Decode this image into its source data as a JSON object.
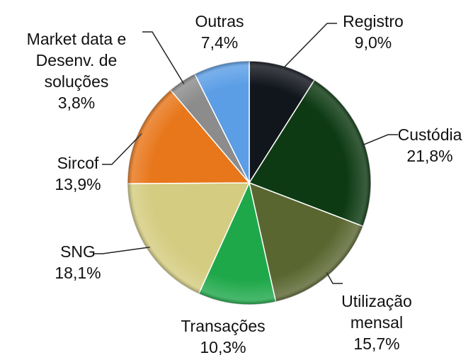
{
  "chart_data": {
    "type": "pie",
    "categories": [
      "Registro",
      "Custódia",
      "Utilização mensal",
      "Transações",
      "SNG",
      "Sircof",
      "Market data e Desenv. de soluções",
      "Outras"
    ],
    "values": [
      9.0,
      21.8,
      15.7,
      10.3,
      18.1,
      13.9,
      3.8,
      7.4
    ],
    "value_labels": [
      "9,0%",
      "21,8%",
      "15,7%",
      "10,3%",
      "18,1%",
      "13,9%",
      "3,8%",
      "7,4%"
    ],
    "colors": [
      "#11151c",
      "#0d3a12",
      "#5a6630",
      "#1fa84a",
      "#d4cc80",
      "#e8761a",
      "#8c8c8c",
      "#5b9ee6"
    ]
  }
}
